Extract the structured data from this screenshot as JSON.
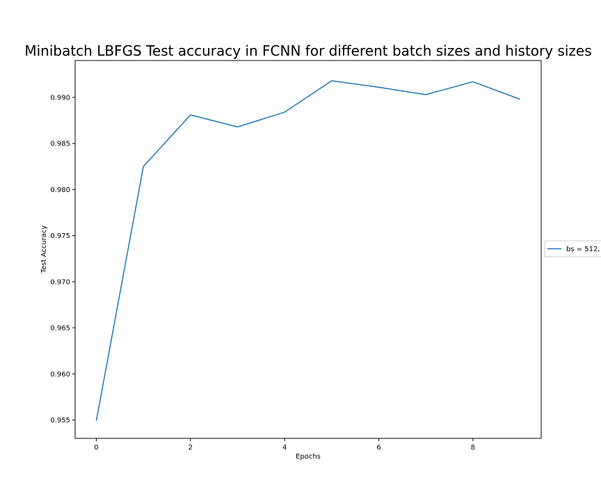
{
  "chart_data": {
    "type": "line",
    "title": "Minibatch LBFGS Test accuracy in FCNN for different batch sizes and history sizes",
    "xlabel": "Epochs",
    "ylabel": "Test Accuracy",
    "xlim": [
      -0.45,
      9.45
    ],
    "ylim": [
      0.953,
      0.994
    ],
    "xticks": [
      0,
      2,
      4,
      6,
      8
    ],
    "xtick_labels": [
      "0",
      "2",
      "4",
      "6",
      "8"
    ],
    "yticks": [
      0.955,
      0.96,
      0.965,
      0.97,
      0.975,
      0.98,
      0.985,
      0.99
    ],
    "ytick_labels": [
      "0.955",
      "0.960",
      "0.965",
      "0.970",
      "0.975",
      "0.980",
      "0.985",
      "0.990"
    ],
    "grid": false,
    "legend_position": "outside-right",
    "series": [
      {
        "name": "bs = 512,",
        "color": "#1f77b4",
        "x": [
          0,
          1,
          2,
          3,
          4,
          5,
          6,
          7,
          8,
          9
        ],
        "values": [
          0.9549,
          0.9825,
          0.9881,
          0.9868,
          0.9884,
          0.9918,
          0.9911,
          0.9903,
          0.9917,
          0.9898
        ]
      }
    ]
  }
}
